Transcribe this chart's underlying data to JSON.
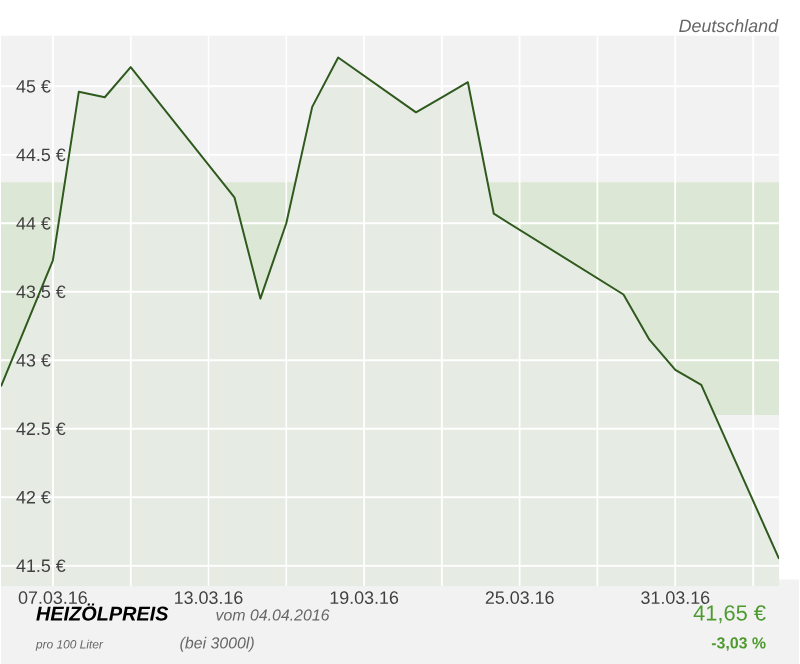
{
  "chart_data": {
    "type": "area",
    "title": "HEIZÖLPREIS",
    "subtitle": "vom 04.04.2016",
    "annotations": [
      "Deutschland",
      "pro 100 Liter",
      "(bei 3000l)",
      "41,65 €",
      "-3,03 %"
    ],
    "x": [
      "2016-03-05",
      "2016-03-07",
      "2016-03-08",
      "2016-03-09",
      "2016-03-10",
      "2016-03-14",
      "2016-03-15",
      "2016-03-16",
      "2016-03-17",
      "2016-03-18",
      "2016-03-21",
      "2016-03-22",
      "2016-03-23",
      "2016-03-24",
      "2016-03-29",
      "2016-03-30",
      "2016-03-31",
      "2016-04-01",
      "2016-04-04"
    ],
    "series": [
      {
        "color": "#2f5a1e",
        "values": [
          42.81,
          43.73,
          44.96,
          44.92,
          45.14,
          44.19,
          43.45,
          44.0,
          44.85,
          45.21,
          44.81,
          44.92,
          45.03,
          44.07,
          43.48,
          43.15,
          42.93,
          42.82,
          41.55
        ]
      }
    ],
    "xlim": [
      "2016-03-05",
      "2016-04-04"
    ],
    "xticks": [
      {
        "value": "2016-03-07",
        "label": "07.03.16"
      },
      {
        "value": "2016-03-10",
        "label": null
      },
      {
        "value": "2016-03-13",
        "label": "13.03.16"
      },
      {
        "value": "2016-03-16",
        "label": null
      },
      {
        "value": "2016-03-19",
        "label": "19.03.16"
      },
      {
        "value": "2016-03-22",
        "label": null
      },
      {
        "value": "2016-03-25",
        "label": "25.03.16"
      },
      {
        "value": "2016-03-28",
        "label": null
      },
      {
        "value": "2016-03-31",
        "label": "31.03.16"
      },
      {
        "value": "2016-04-03",
        "label": null
      }
    ],
    "ylim": [
      41.35,
      45.37
    ],
    "yticks": [
      {
        "value": 41.5,
        "label": "41.5 €"
      },
      {
        "value": 42,
        "label": "42 €"
      },
      {
        "value": 42.5,
        "label": "42.5 €"
      },
      {
        "value": 43,
        "label": "43 €"
      },
      {
        "value": 43.5,
        "label": "43.5 €"
      },
      {
        "value": 44,
        "label": "44 €"
      },
      {
        "value": 44.5,
        "label": "44.5 €"
      },
      {
        "value": 45,
        "label": "45 €"
      }
    ],
    "bands": [
      {
        "axis": "y",
        "from": 42.6,
        "to": 44.3,
        "color": "#dde7d5"
      }
    ],
    "grid": true,
    "marker": "none",
    "line_style": "solid"
  }
}
